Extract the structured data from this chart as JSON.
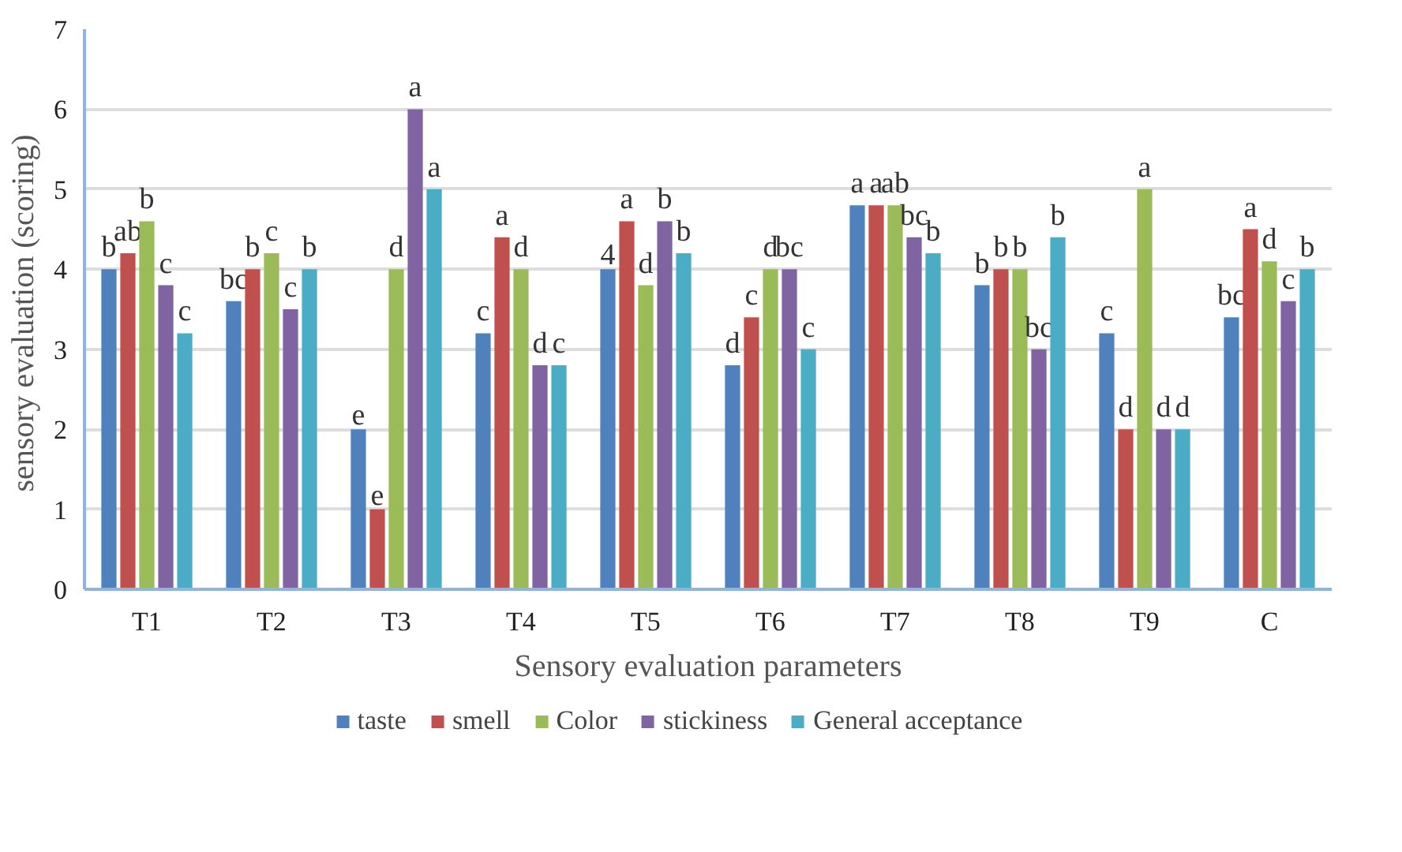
{
  "chart_data": {
    "type": "bar",
    "xlabel": "Sensory evaluation parameters",
    "ylabel": "sensory evaluation  (scoring)",
    "categories": [
      "T1",
      "T2",
      "T3",
      "T4",
      "T5",
      "T6",
      "T7",
      "T8",
      "T9",
      "C"
    ],
    "ylim": [
      0,
      7
    ],
    "yticks": [
      0,
      1,
      2,
      3,
      4,
      5,
      6,
      7
    ],
    "grid": "y",
    "legend": "bottom",
    "series": [
      {
        "name": "taste",
        "color": "#4f81bd",
        "values": [
          4,
          3.6,
          2,
          3.2,
          4,
          2.8,
          4.8,
          3.8,
          3.2,
          3.4
        ],
        "value_labels": [
          "b",
          "bc",
          "e",
          "c",
          "4",
          "d",
          "a",
          "b",
          "c",
          "bc"
        ]
      },
      {
        "name": "smell",
        "color": "#c0504d",
        "values": [
          4.2,
          4,
          1,
          4.4,
          4.6,
          3.4,
          4.8,
          4,
          2,
          4.5
        ],
        "value_labels": [
          "ab",
          "b",
          "e",
          "a",
          "a",
          "c",
          "a",
          "b",
          "d",
          "a"
        ]
      },
      {
        "name": "Color",
        "color": "#9bbb59",
        "values": [
          4.6,
          4.2,
          4,
          4,
          3.8,
          4,
          4.8,
          4,
          5,
          4.1
        ],
        "value_labels": [
          "b",
          "c",
          "d",
          "d",
          "d",
          "d",
          "ab",
          "b",
          "a",
          "d"
        ]
      },
      {
        "name": "stickiness",
        "color": "#8064a2",
        "values": [
          3.8,
          3.5,
          6,
          2.8,
          4.6,
          4,
          4.4,
          3,
          2,
          3.6
        ],
        "value_labels": [
          "c",
          "c",
          "a",
          "d",
          "b",
          "bc",
          "bc",
          "bc",
          "d",
          "c"
        ]
      },
      {
        "name": "General acceptance",
        "color": "#4bacc6",
        "values": [
          3.2,
          4,
          5,
          2.8,
          4.2,
          3,
          4.2,
          4.4,
          2,
          4
        ],
        "value_labels": [
          "c",
          "b",
          "a",
          "c",
          "b",
          "c",
          "b",
          "b",
          "d",
          "b"
        ]
      }
    ]
  }
}
